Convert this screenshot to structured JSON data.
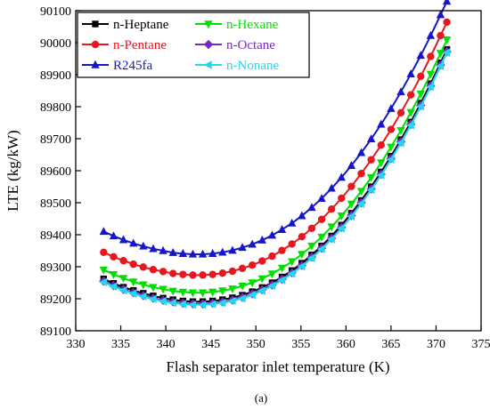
{
  "chart_data": {
    "type": "line",
    "xlabel": "Flash separator inlet temperature (K)",
    "ylabel": "LTE (kg/kW)",
    "caption": "(a)",
    "xlim": [
      330,
      375
    ],
    "ylim": [
      89100,
      90100
    ],
    "xticks": [
      "330",
      "335",
      "340",
      "345",
      "350",
      "355",
      "360",
      "365",
      "370",
      "375"
    ],
    "yticks": [
      "89100",
      "89200",
      "89300",
      "89400",
      "89500",
      "89600",
      "89700",
      "89800",
      "89900",
      "90000",
      "90100"
    ],
    "x": [
      333.1,
      334.2,
      335.3,
      336.4,
      337.5,
      338.6,
      339.7,
      340.8,
      341.9,
      343.0,
      344.1,
      345.2,
      346.3,
      347.4,
      348.5,
      349.6,
      350.7,
      351.8,
      352.9,
      354.0,
      355.1,
      356.2,
      357.3,
      358.4,
      359.5,
      360.6,
      361.7,
      362.8,
      363.9,
      365.0,
      366.1,
      367.2,
      368.3,
      369.4,
      370.5,
      371.2
    ],
    "grid": false,
    "legend_position": "top-left",
    "series": [
      {
        "name": "n-Heptane",
        "color": "#000000",
        "marker": "square",
        "values": [
          89262,
          89248,
          89236,
          89226,
          89217,
          89209,
          89202,
          89197,
          89193,
          89191,
          89191,
          89193,
          89197,
          89203,
          89211,
          89222,
          89235,
          89250,
          89268,
          89288,
          89311,
          89337,
          89365,
          89396,
          89430,
          89467,
          89507,
          89550,
          89596,
          89645,
          89697,
          89752,
          89811,
          89872,
          89937,
          89979
        ]
      },
      {
        "name": "n-Hexane",
        "color": "#00e000",
        "marker": "triangle-down",
        "values": [
          89290,
          89276,
          89264,
          89253,
          89244,
          89236,
          89230,
          89224,
          89221,
          89219,
          89219,
          89221,
          89225,
          89231,
          89240,
          89250,
          89263,
          89278,
          89296,
          89316,
          89339,
          89365,
          89393,
          89425,
          89459,
          89496,
          89536,
          89579,
          89625,
          89674,
          89726,
          89782,
          89840,
          89902,
          89967,
          90009
        ]
      },
      {
        "name": "n-Pentane",
        "color": "#e8171f",
        "marker": "circle",
        "values": [
          89345,
          89331,
          89319,
          89308,
          89299,
          89291,
          89285,
          89279,
          89276,
          89274,
          89274,
          89276,
          89280,
          89286,
          89295,
          89305,
          89318,
          89333,
          89351,
          89371,
          89394,
          89420,
          89448,
          89480,
          89514,
          89551,
          89591,
          89634,
          89680,
          89729,
          89781,
          89837,
          89895,
          89957,
          90022,
          90064
        ]
      },
      {
        "name": "n-Octane",
        "color": "#7b27c8",
        "marker": "diamond",
        "values": [
          89255,
          89241,
          89229,
          89219,
          89210,
          89202,
          89195,
          89190,
          89186,
          89184,
          89184,
          89186,
          89190,
          89196,
          89204,
          89215,
          89228,
          89243,
          89261,
          89281,
          89304,
          89330,
          89358,
          89389,
          89423,
          89460,
          89500,
          89543,
          89589,
          89638,
          89690,
          89745,
          89804,
          89865,
          89930,
          89972
        ]
      },
      {
        "name": "R245fa",
        "color": "#1616c8",
        "marker": "triangle-up",
        "values": [
          89410,
          89396,
          89384,
          89373,
          89364,
          89356,
          89350,
          89344,
          89341,
          89339,
          89339,
          89341,
          89345,
          89351,
          89360,
          89370,
          89383,
          89398,
          89416,
          89436,
          89459,
          89485,
          89513,
          89545,
          89579,
          89616,
          89656,
          89699,
          89745,
          89794,
          89846,
          89902,
          89960,
          90022,
          90087,
          90129
        ]
      },
      {
        "name": "n-Nonane",
        "color": "#22d8ec",
        "marker": "triangle-left",
        "values": [
          89252,
          89238,
          89226,
          89216,
          89207,
          89199,
          89192,
          89187,
          89183,
          89181,
          89181,
          89183,
          89187,
          89193,
          89201,
          89212,
          89225,
          89240,
          89258,
          89278,
          89301,
          89327,
          89355,
          89386,
          89420,
          89457,
          89497,
          89540,
          89586,
          89635,
          89687,
          89742,
          89801,
          89862,
          89927,
          89969
        ]
      }
    ]
  }
}
